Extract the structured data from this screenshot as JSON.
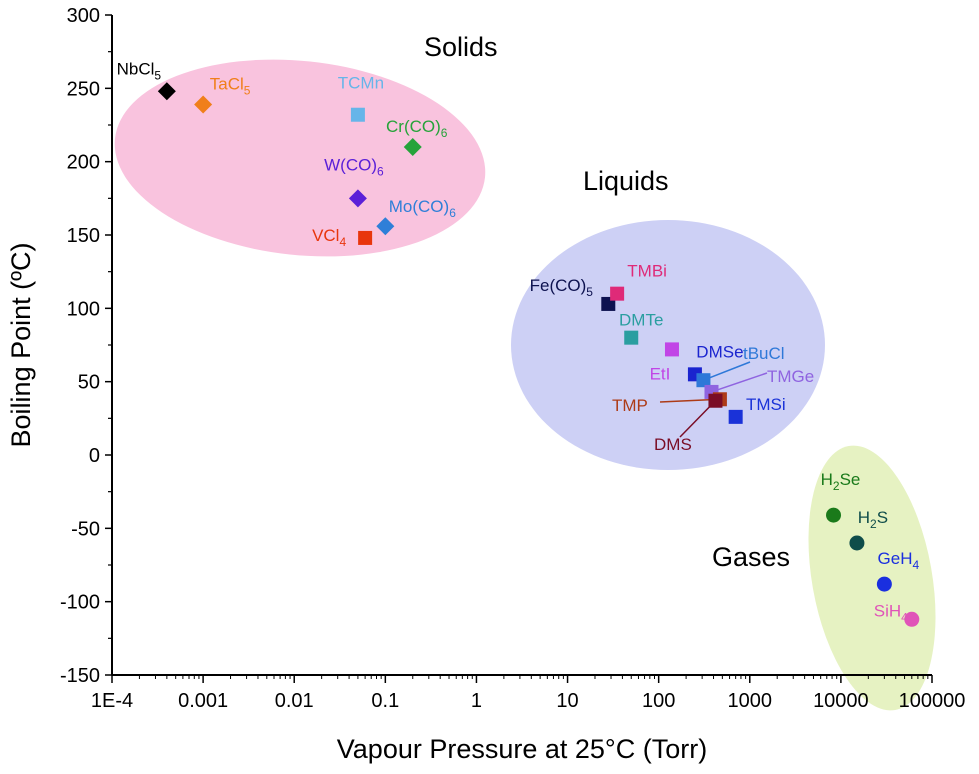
{
  "chart_data": {
    "type": "scatter",
    "xlabel": "Vapour Pressure at 25°C (Torr)",
    "ylabel": "Boiling Point (ºC)",
    "xscale": "log",
    "xlim": [
      0.0001,
      100000
    ],
    "ylim": [
      -150,
      300
    ],
    "x_tick_labels": [
      "1E-4",
      "0.001",
      "0.01",
      "0.1",
      "1",
      "10",
      "100",
      "1000",
      "10000",
      "100000"
    ],
    "y_tick_labels": [
      "-150",
      "-100",
      "-50",
      "0",
      "50",
      "100",
      "150",
      "200",
      "250",
      "300"
    ],
    "grid": false,
    "groups": [
      {
        "name": "Solids",
        "color": "#f9c3de"
      },
      {
        "name": "Liquids",
        "color": "#cdd0f5"
      },
      {
        "name": "Gases",
        "color": "#e6f2c2"
      }
    ],
    "points": [
      {
        "name": "NbCl",
        "sub": "5",
        "x": 0.0004,
        "y": 248,
        "marker": "diamond",
        "color": "#000000",
        "group": "Solids"
      },
      {
        "name": "TaCl",
        "sub": "5",
        "x": 0.001,
        "y": 239,
        "marker": "diamond",
        "color": "#f07f1b",
        "group": "Solids"
      },
      {
        "name": "TCMn",
        "sub": "",
        "x": 0.05,
        "y": 232,
        "marker": "square",
        "color": "#66b5e9",
        "group": "Solids"
      },
      {
        "name": "Cr(CO)",
        "sub": "6",
        "x": 0.2,
        "y": 210,
        "marker": "diamond",
        "color": "#26a33a",
        "group": "Solids"
      },
      {
        "name": "W(CO)",
        "sub": "6",
        "x": 0.05,
        "y": 175,
        "marker": "diamond",
        "color": "#5b20d8",
        "group": "Solids"
      },
      {
        "name": "Mo(CO)",
        "sub": "6",
        "x": 0.1,
        "y": 156,
        "marker": "diamond",
        "color": "#2f7fd8",
        "group": "Solids"
      },
      {
        "name": "VCl",
        "sub": "4",
        "x": 0.06,
        "y": 148,
        "marker": "square",
        "color": "#e8360d",
        "group": "Solids"
      },
      {
        "name": "Fe(CO)",
        "sub": "5",
        "x": 28,
        "y": 103,
        "marker": "square",
        "color": "#0d1250",
        "group": "Liquids"
      },
      {
        "name": "TMBi",
        "sub": "",
        "x": 35,
        "y": 110,
        "marker": "square",
        "color": "#df2a78",
        "group": "Liquids"
      },
      {
        "name": "DMTe",
        "sub": "",
        "x": 50,
        "y": 80,
        "marker": "square",
        "color": "#2a9ea0",
        "group": "Liquids"
      },
      {
        "name": "EtI",
        "sub": "",
        "x": 140,
        "y": 72,
        "marker": "square",
        "color": "#c145e6",
        "group": "Liquids"
      },
      {
        "name": "DMSe",
        "sub": "",
        "x": 250,
        "y": 55,
        "marker": "square",
        "color": "#1a24cf",
        "group": "Liquids"
      },
      {
        "name": "tBuCl",
        "sub": "",
        "x": 310,
        "y": 51,
        "marker": "square",
        "color": "#2e78d8",
        "group": "Liquids"
      },
      {
        "name": "TMGe",
        "sub": "",
        "x": 380,
        "y": 43,
        "marker": "square",
        "color": "#8f64e0",
        "group": "Liquids"
      },
      {
        "name": "TMP",
        "sub": "",
        "x": 470,
        "y": 38,
        "marker": "square",
        "color": "#ad3b17",
        "group": "Liquids"
      },
      {
        "name": "DMS",
        "sub": "",
        "x": 420,
        "y": 37,
        "marker": "square",
        "color": "#7a0d26",
        "group": "Liquids"
      },
      {
        "name": "TMSi",
        "sub": "",
        "x": 700,
        "y": 26,
        "marker": "square",
        "color": "#1a32d8",
        "group": "Liquids"
      },
      {
        "name": "H",
        "sub": "2",
        "suffix": "Se",
        "x": 8300,
        "y": -41,
        "marker": "circle",
        "color": "#1a7a1a",
        "group": "Gases"
      },
      {
        "name": "H",
        "sub": "2",
        "suffix": "S",
        "x": 15000,
        "y": -60,
        "marker": "circle",
        "color": "#0f4d4a",
        "group": "Gases"
      },
      {
        "name": "GeH",
        "sub": "4",
        "x": 30000,
        "y": -88,
        "marker": "circle",
        "color": "#1a2fdf",
        "group": "Gases"
      },
      {
        "name": "SiH",
        "sub": "4",
        "x": 60000,
        "y": -112,
        "marker": "circle",
        "color": "#e054b8",
        "group": "Gases"
      }
    ]
  }
}
